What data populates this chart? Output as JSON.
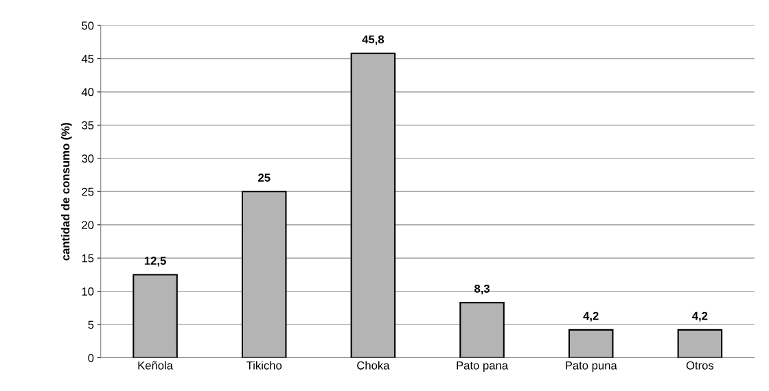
{
  "chart_data": {
    "type": "bar",
    "ylabel": "cantidad de consumo (%)",
    "categories": [
      "Keñola",
      "Tikicho",
      "Choka",
      "Pato pana",
      "Pato puna",
      "Otros"
    ],
    "values": [
      12.5,
      25,
      45.8,
      8.3,
      4.2,
      4.2
    ],
    "value_labels": [
      "12,5",
      "25",
      "45,8",
      "8,3",
      "4,2",
      "4,2"
    ],
    "color": "#b4b4b4",
    "ylim": [
      0,
      50
    ],
    "yticks": [
      0,
      5,
      10,
      15,
      20,
      25,
      30,
      35,
      40,
      45,
      50
    ],
    "grid": "y"
  }
}
